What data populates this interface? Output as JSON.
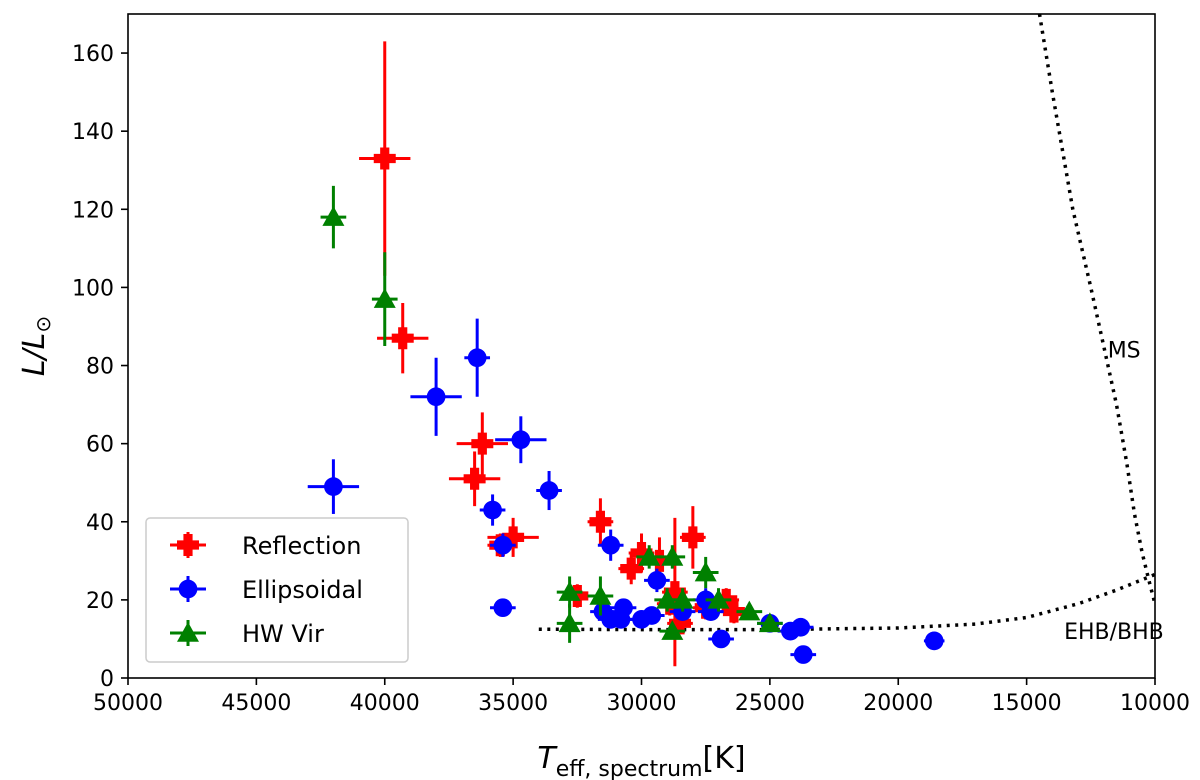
{
  "chart_data": {
    "type": "scatter",
    "title": "",
    "xlabel": "T",
    "xlabel_sub": "eff, spectrum",
    "xlabel_unit": "[K]",
    "ylabel": "L/L",
    "ylabel_sub": "⊙",
    "xlim": [
      50000,
      10000
    ],
    "ylim": [
      0,
      170
    ],
    "x_inverted": true,
    "xticks": [
      50000,
      45000,
      40000,
      35000,
      30000,
      25000,
      20000,
      15000,
      10000
    ],
    "xtick_labels": [
      "50000",
      "45000",
      "40000",
      "35000",
      "30000",
      "25000",
      "20000",
      "15000",
      "10000"
    ],
    "yticks": [
      0,
      20,
      40,
      60,
      80,
      100,
      120,
      140,
      160
    ],
    "ytick_labels": [
      "0",
      "20",
      "40",
      "60",
      "80",
      "100",
      "120",
      "140",
      "160"
    ],
    "grid": false,
    "legend_position": "bottom-left",
    "series": [
      {
        "name": "Reflection",
        "color": "#ff0000",
        "marker": "plus",
        "points": [
          {
            "x": 40000,
            "y": 133,
            "xerr": 1000,
            "yerr": 30
          },
          {
            "x": 39300,
            "y": 87,
            "xerr": 1000,
            "yerr": 9
          },
          {
            "x": 36200,
            "y": 60,
            "xerr": 1000,
            "yerr": 8
          },
          {
            "x": 36500,
            "y": 51,
            "xerr": 1000,
            "yerr": 7
          },
          {
            "x": 35000,
            "y": 36,
            "xerr": 1000,
            "yerr": 5
          },
          {
            "x": 35500,
            "y": 34,
            "xerr": 500,
            "yerr": 3
          },
          {
            "x": 31600,
            "y": 40,
            "xerr": 500,
            "yerr": 6
          },
          {
            "x": 32500,
            "y": 21,
            "xerr": 500,
            "yerr": 3
          },
          {
            "x": 30400,
            "y": 28,
            "xerr": 500,
            "yerr": 4
          },
          {
            "x": 30000,
            "y": 32,
            "xerr": 500,
            "yerr": 5
          },
          {
            "x": 29300,
            "y": 30,
            "xerr": 500,
            "yerr": 6
          },
          {
            "x": 28900,
            "y": 19,
            "xerr": 500,
            "yerr": 3
          },
          {
            "x": 28700,
            "y": 22,
            "xerr": 500,
            "yerr": 19
          },
          {
            "x": 28500,
            "y": 14,
            "xerr": 500,
            "yerr": 2
          },
          {
            "x": 28000,
            "y": 36,
            "xerr": 500,
            "yerr": 8
          },
          {
            "x": 27500,
            "y": 18,
            "xerr": 500,
            "yerr": 3
          },
          {
            "x": 26700,
            "y": 20,
            "xerr": 500,
            "yerr": 3
          },
          {
            "x": 26400,
            "y": 17,
            "xerr": 500,
            "yerr": 3
          }
        ]
      },
      {
        "name": "Ellipsoidal",
        "color": "#0000ff",
        "marker": "circle",
        "points": [
          {
            "x": 36400,
            "y": 82,
            "xerr": 500,
            "yerr": 10
          },
          {
            "x": 38000,
            "y": 72,
            "xerr": 1000,
            "yerr": 10
          },
          {
            "x": 34700,
            "y": 61,
            "xerr": 1000,
            "yerr": 6
          },
          {
            "x": 42000,
            "y": 49,
            "xerr": 1000,
            "yerr": 7
          },
          {
            "x": 33600,
            "y": 48,
            "xerr": 500,
            "yerr": 5
          },
          {
            "x": 35800,
            "y": 43,
            "xerr": 500,
            "yerr": 4
          },
          {
            "x": 35400,
            "y": 34,
            "xerr": 500,
            "yerr": 3
          },
          {
            "x": 35400,
            "y": 18,
            "xerr": 500,
            "yerr": 2
          },
          {
            "x": 31200,
            "y": 34,
            "xerr": 500,
            "yerr": 4
          },
          {
            "x": 29400,
            "y": 25,
            "xerr": 500,
            "yerr": 3
          },
          {
            "x": 31500,
            "y": 17,
            "xerr": 500,
            "yerr": 2
          },
          {
            "x": 31200,
            "y": 15,
            "xerr": 500,
            "yerr": 2
          },
          {
            "x": 30800,
            "y": 15,
            "xerr": 500,
            "yerr": 2
          },
          {
            "x": 30700,
            "y": 18,
            "xerr": 500,
            "yerr": 2
          },
          {
            "x": 30000,
            "y": 15,
            "xerr": 500,
            "yerr": 2
          },
          {
            "x": 29600,
            "y": 16,
            "xerr": 500,
            "yerr": 2
          },
          {
            "x": 28400,
            "y": 17,
            "xerr": 500,
            "yerr": 2
          },
          {
            "x": 27500,
            "y": 20,
            "xerr": 500,
            "yerr": 3
          },
          {
            "x": 27300,
            "y": 17,
            "xerr": 500,
            "yerr": 2
          },
          {
            "x": 26900,
            "y": 10,
            "xerr": 500,
            "yerr": 1.5
          },
          {
            "x": 25000,
            "y": 14,
            "xerr": 500,
            "yerr": 2
          },
          {
            "x": 24200,
            "y": 12,
            "xerr": 500,
            "yerr": 2
          },
          {
            "x": 23800,
            "y": 13,
            "xerr": 500,
            "yerr": 2
          },
          {
            "x": 23700,
            "y": 6,
            "xerr": 500,
            "yerr": 1
          },
          {
            "x": 18600,
            "y": 9.5,
            "xerr": 400,
            "yerr": 1
          }
        ]
      },
      {
        "name": "HW Vir",
        "color": "#008000",
        "marker": "triangle",
        "points": [
          {
            "x": 42000,
            "y": 118,
            "xerr": 500,
            "yerr": 8
          },
          {
            "x": 40000,
            "y": 97,
            "xerr": 500,
            "yerr": 12
          },
          {
            "x": 32800,
            "y": 22,
            "xerr": 500,
            "yerr": 4
          },
          {
            "x": 32800,
            "y": 14,
            "xerr": 500,
            "yerr": 5
          },
          {
            "x": 31600,
            "y": 21,
            "xerr": 500,
            "yerr": 5
          },
          {
            "x": 29700,
            "y": 31,
            "xerr": 500,
            "yerr": 3
          },
          {
            "x": 29000,
            "y": 20,
            "xerr": 500,
            "yerr": 3
          },
          {
            "x": 28800,
            "y": 31,
            "xerr": 500,
            "yerr": 3
          },
          {
            "x": 28800,
            "y": 12,
            "xerr": 500,
            "yerr": 2
          },
          {
            "x": 28400,
            "y": 20,
            "xerr": 500,
            "yerr": 3
          },
          {
            "x": 27500,
            "y": 27,
            "xerr": 500,
            "yerr": 4
          },
          {
            "x": 27000,
            "y": 20,
            "xerr": 500,
            "yerr": 3
          },
          {
            "x": 25800,
            "y": 17,
            "xerr": 500,
            "yerr": 2
          },
          {
            "x": 25000,
            "y": 14,
            "xerr": 500,
            "yerr": 2
          }
        ]
      }
    ],
    "reference_curves": [
      {
        "name": "EHB/BHB",
        "style": "dotted",
        "color": "#000000",
        "points": [
          [
            34000,
            12.5
          ],
          [
            30000,
            12.4
          ],
          [
            25000,
            12.4
          ],
          [
            20000,
            12.8
          ],
          [
            17000,
            13.8
          ],
          [
            15000,
            15.5
          ],
          [
            13000,
            19
          ],
          [
            11500,
            22.5
          ],
          [
            10000,
            26.5
          ]
        ]
      },
      {
        "name": "MS",
        "style": "dotted",
        "color": "#000000",
        "points": [
          [
            14500,
            170
          ],
          [
            14000,
            150
          ],
          [
            13200,
            120
          ],
          [
            12500,
            100
          ],
          [
            12000,
            85
          ],
          [
            11500,
            70
          ],
          [
            11100,
            55
          ],
          [
            10800,
            42
          ],
          [
            10500,
            32
          ],
          [
            10200,
            24
          ],
          [
            10000,
            19
          ]
        ]
      }
    ],
    "annotations": [
      {
        "text": "MS",
        "x": 11200,
        "y": 82
      },
      {
        "text": "EHB/BHB",
        "x": 11600,
        "y": 10
      }
    ]
  }
}
